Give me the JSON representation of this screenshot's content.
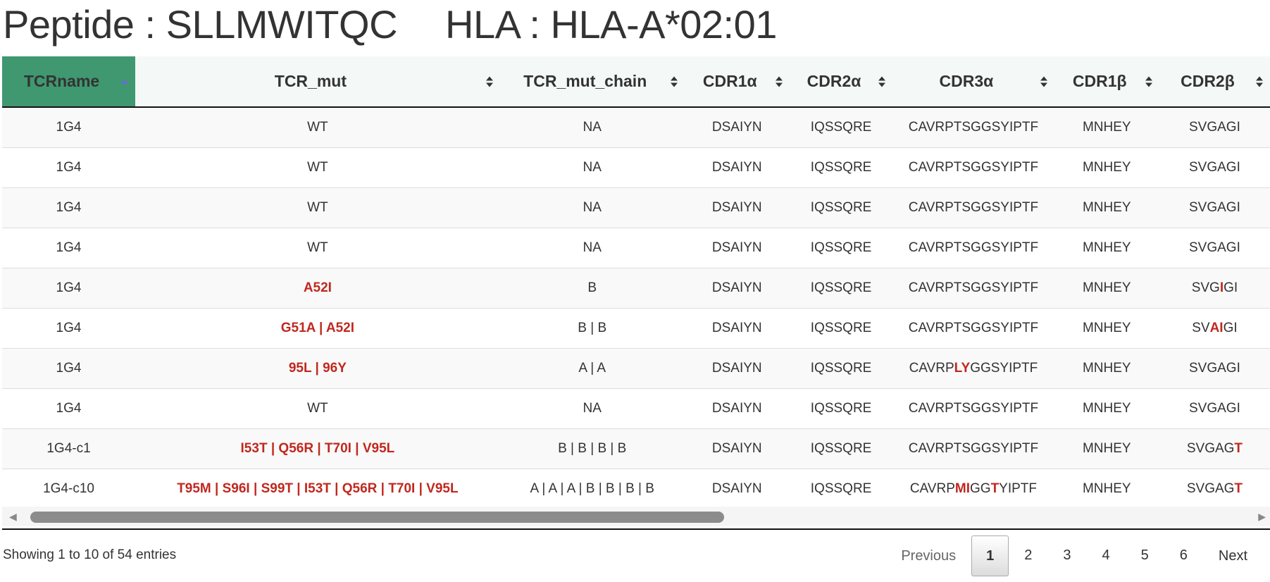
{
  "title": {
    "peptide": "Peptide : SLLMWITQC",
    "hla": "HLA : HLA-A*02:01"
  },
  "columns": [
    "TCRname",
    "TCR_mut",
    "TCR_mut_chain",
    "CDR1α",
    "CDR2α",
    "CDR3α",
    "CDR1β",
    "CDR2β"
  ],
  "sorted_column": "TCRname",
  "colors": {
    "sorted_header": "#3f9870",
    "highlight": "#c0281f"
  },
  "rows": [
    {
      "TCRname": "1G4",
      "TCR_mut": [
        [
          "WT",
          0
        ]
      ],
      "chain": "NA",
      "CDR1a": "DSAIYN",
      "CDR2a": "IQSSQRE",
      "CDR3a": [
        [
          "CAVRPTSGGSYIPTF",
          0
        ]
      ],
      "CDR1b": "MNHEY",
      "CDR2b": [
        [
          "SVGAGI",
          0
        ]
      ]
    },
    {
      "TCRname": "1G4",
      "TCR_mut": [
        [
          "WT",
          0
        ]
      ],
      "chain": "NA",
      "CDR1a": "DSAIYN",
      "CDR2a": "IQSSQRE",
      "CDR3a": [
        [
          "CAVRPTSGGSYIPTF",
          0
        ]
      ],
      "CDR1b": "MNHEY",
      "CDR2b": [
        [
          "SVGAGI",
          0
        ]
      ]
    },
    {
      "TCRname": "1G4",
      "TCR_mut": [
        [
          "WT",
          0
        ]
      ],
      "chain": "NA",
      "CDR1a": "DSAIYN",
      "CDR2a": "IQSSQRE",
      "CDR3a": [
        [
          "CAVRPTSGGSYIPTF",
          0
        ]
      ],
      "CDR1b": "MNHEY",
      "CDR2b": [
        [
          "SVGAGI",
          0
        ]
      ]
    },
    {
      "TCRname": "1G4",
      "TCR_mut": [
        [
          "WT",
          0
        ]
      ],
      "chain": "NA",
      "CDR1a": "DSAIYN",
      "CDR2a": "IQSSQRE",
      "CDR3a": [
        [
          "CAVRPTSGGSYIPTF",
          0
        ]
      ],
      "CDR1b": "MNHEY",
      "CDR2b": [
        [
          "SVGAGI",
          0
        ]
      ]
    },
    {
      "TCRname": "1G4",
      "TCR_mut": [
        [
          "A52I",
          1
        ]
      ],
      "chain": "B",
      "CDR1a": "DSAIYN",
      "CDR2a": "IQSSQRE",
      "CDR3a": [
        [
          "CAVRPTSGGSYIPTF",
          0
        ]
      ],
      "CDR1b": "MNHEY",
      "CDR2b": [
        [
          "SVG",
          0
        ],
        [
          "I",
          1
        ],
        [
          "GI",
          0
        ]
      ]
    },
    {
      "TCRname": "1G4",
      "TCR_mut": [
        [
          "G51A | A52I",
          1
        ]
      ],
      "chain": "B | B",
      "CDR1a": "DSAIYN",
      "CDR2a": "IQSSQRE",
      "CDR3a": [
        [
          "CAVRPTSGGSYIPTF",
          0
        ]
      ],
      "CDR1b": "MNHEY",
      "CDR2b": [
        [
          "SV",
          0
        ],
        [
          "AI",
          1
        ],
        [
          "GI",
          0
        ]
      ]
    },
    {
      "TCRname": "1G4",
      "TCR_mut": [
        [
          "95L | 96Y",
          1
        ]
      ],
      "chain": "A | A",
      "CDR1a": "DSAIYN",
      "CDR2a": "IQSSQRE",
      "CDR3a": [
        [
          "CAVRP",
          0
        ],
        [
          "LY",
          1
        ],
        [
          "GGSYIPTF",
          0
        ]
      ],
      "CDR1b": "MNHEY",
      "CDR2b": [
        [
          "SVGAGI",
          0
        ]
      ]
    },
    {
      "TCRname": "1G4",
      "TCR_mut": [
        [
          "WT",
          0
        ]
      ],
      "chain": "NA",
      "CDR1a": "DSAIYN",
      "CDR2a": "IQSSQRE",
      "CDR3a": [
        [
          "CAVRPTSGGSYIPTF",
          0
        ]
      ],
      "CDR1b": "MNHEY",
      "CDR2b": [
        [
          "SVGAGI",
          0
        ]
      ]
    },
    {
      "TCRname": "1G4-c1",
      "TCR_mut": [
        [
          "I53T | Q56R | T70I | V95L",
          1
        ]
      ],
      "chain": "B | B | B | B",
      "CDR1a": "DSAIYN",
      "CDR2a": "IQSSQRE",
      "CDR3a": [
        [
          "CAVRPTSGGSYIPTF",
          0
        ]
      ],
      "CDR1b": "MNHEY",
      "CDR2b": [
        [
          "SVGAG",
          0
        ],
        [
          "T",
          1
        ]
      ]
    },
    {
      "TCRname": "1G4-c10",
      "TCR_mut": [
        [
          "T95M | S96I | S99T | I53T | Q56R | T70I | V95L",
          1
        ]
      ],
      "chain": "A | A | A | B | B | B | B",
      "CDR1a": "DSAIYN",
      "CDR2a": "IQSSQRE",
      "CDR3a": [
        [
          "CAVRP",
          0
        ],
        [
          "MI",
          1
        ],
        [
          "GG",
          0
        ],
        [
          "T",
          1
        ],
        [
          "YIPTF",
          0
        ]
      ],
      "CDR1b": "MNHEY",
      "CDR2b": [
        [
          "SVGAG",
          0
        ],
        [
          "T",
          1
        ]
      ]
    }
  ],
  "footer": {
    "info": "Showing 1 to 10 of 54 entries",
    "previous": "Previous",
    "next": "Next",
    "pages": [
      "1",
      "2",
      "3",
      "4",
      "5",
      "6"
    ],
    "current_page": "1"
  }
}
